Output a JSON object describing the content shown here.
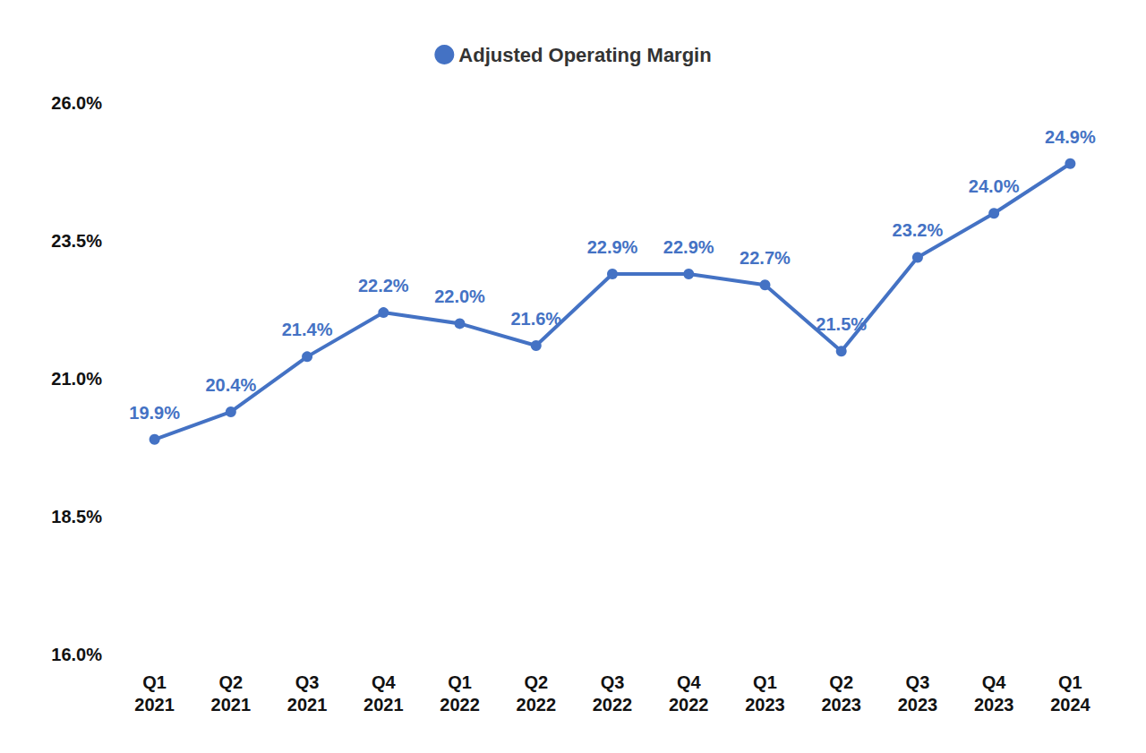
{
  "chart_data": {
    "type": "line",
    "categories": [
      "Q1 2021",
      "Q2 2021",
      "Q3 2021",
      "Q4 2021",
      "Q1 2022",
      "Q2 2022",
      "Q3 2022",
      "Q4 2022",
      "Q1 2023",
      "Q2 2023",
      "Q3 2023",
      "Q4 2023",
      "Q1 2024"
    ],
    "series": [
      {
        "name": "Adjusted Operating Margin",
        "color": "#4472c4",
        "marker": "circle",
        "values": [
          19.9,
          20.4,
          21.4,
          22.2,
          22.0,
          21.6,
          22.9,
          22.9,
          22.7,
          21.5,
          23.2,
          24.0,
          24.9
        ],
        "value_labels": [
          "19.9%",
          "20.4%",
          "21.4%",
          "22.2%",
          "22.0%",
          "21.6%",
          "22.9%",
          "22.9%",
          "22.7%",
          "21.5%",
          "23.2%",
          "24.0%",
          "24.9%"
        ]
      }
    ],
    "ylim": [
      16,
      26
    ],
    "yticks": [
      {
        "value": 16,
        "label": "16.0%"
      },
      {
        "value": 18.5,
        "label": "18.5%"
      },
      {
        "value": 21,
        "label": "21.0%"
      },
      {
        "value": 23.5,
        "label": "23.5%"
      },
      {
        "value": 26,
        "label": "26.0%"
      }
    ],
    "grid": false,
    "legend": "top",
    "data_labels": true
  }
}
